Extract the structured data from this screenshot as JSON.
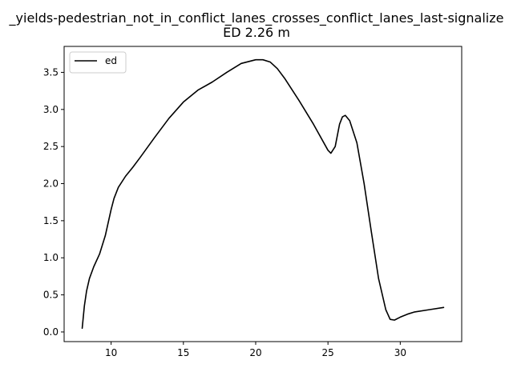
{
  "chart_data": {
    "type": "line",
    "title_line1": "_yields-pedestrian_not_in_conflict_lanes_crosses_conflict_lanes_last-signalize",
    "title_line2": "ED 2.26 m",
    "xlabel": "",
    "ylabel": "",
    "xlim": [
      6.75,
      34.25
    ],
    "ylim": [
      -0.13,
      3.85
    ],
    "xticks": [
      10,
      15,
      20,
      25,
      30
    ],
    "yticks": [
      0.0,
      0.5,
      1.0,
      1.5,
      2.0,
      2.5,
      3.0,
      3.5
    ],
    "xtick_labels": [
      "10",
      "15",
      "20",
      "25",
      "30"
    ],
    "ytick_labels": [
      "0.0",
      "0.5",
      "1.0",
      "1.5",
      "2.0",
      "2.5",
      "3.0",
      "3.5"
    ],
    "grid": false,
    "legend_position": "upper-left",
    "series": [
      {
        "name": "ed",
        "color": "#000000",
        "x": [
          8.0,
          8.15,
          8.3,
          8.5,
          8.8,
          9.2,
          9.6,
          10.0,
          10.2,
          10.5,
          11.0,
          11.5,
          12.0,
          13.0,
          14.0,
          15.0,
          16.0,
          17.0,
          18.0,
          19.0,
          20.0,
          20.5,
          21.0,
          21.5,
          22.0,
          23.0,
          24.0,
          25.0,
          25.2,
          25.5,
          25.8,
          26.0,
          26.2,
          26.5,
          27.0,
          27.5,
          28.0,
          28.5,
          29.0,
          29.3,
          29.6,
          30.0,
          30.5,
          31.0,
          32.0,
          33.0
        ],
        "y": [
          0.05,
          0.35,
          0.55,
          0.72,
          0.88,
          1.05,
          1.3,
          1.65,
          1.8,
          1.95,
          2.1,
          2.22,
          2.35,
          2.62,
          2.88,
          3.1,
          3.26,
          3.37,
          3.5,
          3.62,
          3.67,
          3.67,
          3.64,
          3.55,
          3.42,
          3.12,
          2.8,
          2.45,
          2.41,
          2.5,
          2.8,
          2.9,
          2.92,
          2.85,
          2.55,
          2.0,
          1.35,
          0.72,
          0.3,
          0.17,
          0.16,
          0.2,
          0.24,
          0.27,
          0.3,
          0.33
        ]
      }
    ]
  }
}
